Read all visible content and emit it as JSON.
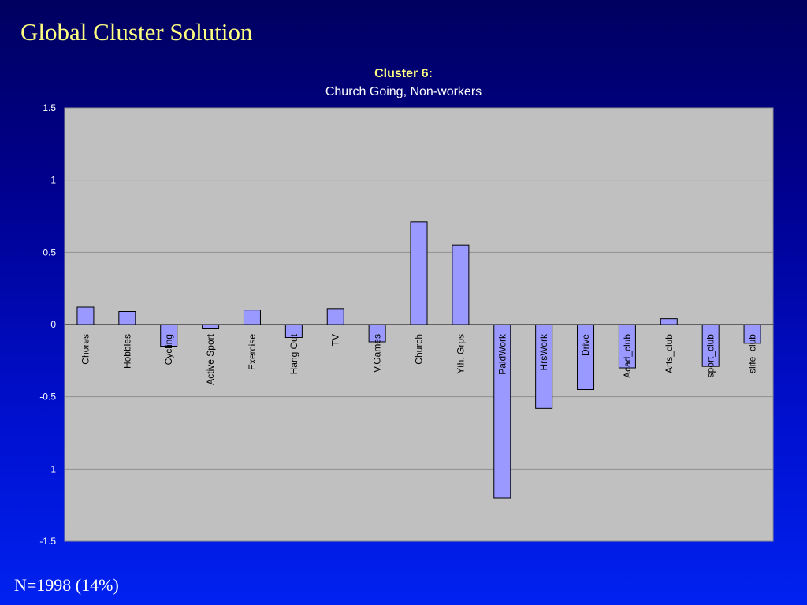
{
  "slide": {
    "title": "Global Cluster Solution",
    "footer": "N=1998 (14%)"
  },
  "colors": {
    "title": "#ffff80",
    "chart_title": "#ffff80",
    "chart_subtitle": "#ffffff",
    "tick_label": "#ffffff",
    "plot_background": "#c0c0c0",
    "gridline": "#909090",
    "bar_fill": "#9999ff",
    "bar_stroke": "#000000"
  },
  "chart_data": {
    "type": "bar",
    "title": "Cluster 6:",
    "subtitle": "Church Going, Non-workers",
    "xlabel": "",
    "ylabel": "",
    "ylim": [
      -1.5,
      1.5
    ],
    "yticks": [
      1.5,
      1,
      0.5,
      0,
      -0.5,
      -1,
      -1.5
    ],
    "ytick_labels": [
      "1.5",
      "1",
      "0.5",
      "0",
      "-0.5",
      "-1",
      "-1.5"
    ],
    "grid": true,
    "legend": "none",
    "categories": [
      "Chores",
      "Hobbies",
      "Cycling",
      "Active Sport",
      "Exercise",
      "Hang Out",
      "TV",
      "V.Games",
      "Church",
      "Yth. Grps",
      "PaidWork",
      "HrsWork",
      "Drive",
      "Acad_club",
      "Arts_club",
      "sport_club",
      "slife_club"
    ],
    "values": [
      0.12,
      0.09,
      -0.15,
      -0.03,
      0.1,
      -0.09,
      0.11,
      -0.12,
      0.71,
      0.55,
      -1.2,
      -0.58,
      -0.45,
      -0.3,
      0.04,
      -0.29,
      -0.13
    ]
  }
}
